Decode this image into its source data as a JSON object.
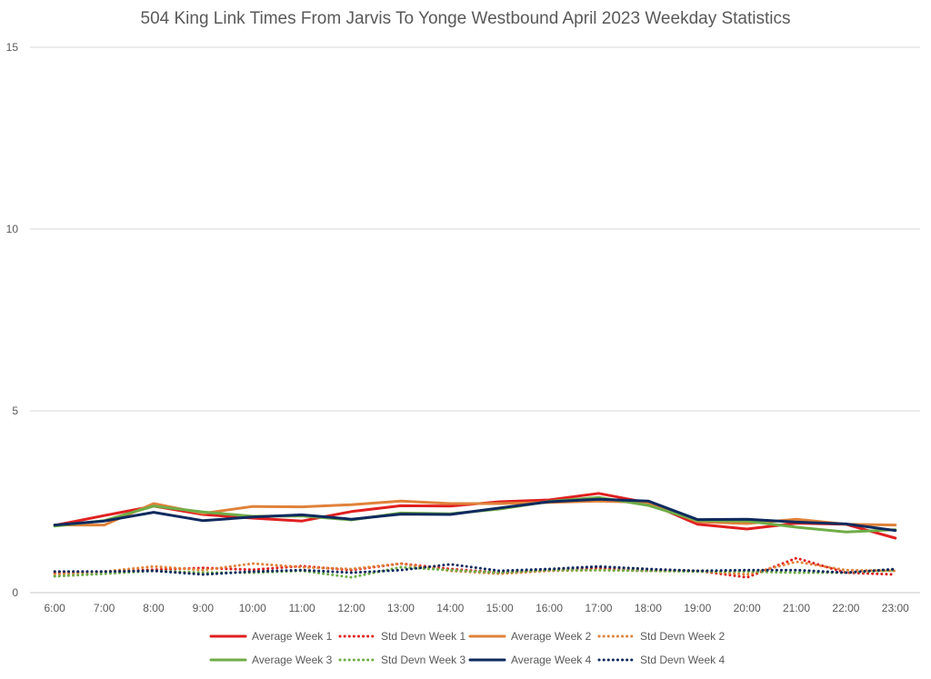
{
  "chart_data": {
    "type": "line",
    "title": "504 King Link Times From Jarvis To Yonge Westbound April 2023 Weekday Statistics",
    "xlabel": "",
    "ylabel": "",
    "ylim": [
      0,
      15
    ],
    "yticks": [
      "0",
      "5",
      "10",
      "15"
    ],
    "grid": "horizontal",
    "legend_placement": "bottom",
    "categories": [
      "6:00",
      "7:00",
      "8:00",
      "9:00",
      "10:00",
      "11:00",
      "12:00",
      "13:00",
      "14:00",
      "15:00",
      "16:00",
      "17:00",
      "18:00",
      "19:00",
      "20:00",
      "21:00",
      "22:00",
      "23:00"
    ],
    "series": [
      {
        "name": "Average Week 1",
        "color": "#e02020",
        "style": "solid",
        "values": [
          1.85,
          2.12,
          2.38,
          2.15,
          2.05,
          1.97,
          2.23,
          2.39,
          2.38,
          2.5,
          2.55,
          2.73,
          2.47,
          1.88,
          1.75,
          1.91,
          1.88,
          1.5
        ]
      },
      {
        "name": "Std Devn Week 1",
        "color": "#e02020",
        "style": "dotted",
        "values": [
          0.55,
          0.57,
          0.63,
          0.68,
          0.63,
          0.73,
          0.62,
          0.8,
          0.65,
          0.55,
          0.62,
          0.68,
          0.6,
          0.6,
          0.42,
          0.95,
          0.55,
          0.5
        ]
      },
      {
        "name": "Average Week 2",
        "color": "#e0823a",
        "style": "solid",
        "values": [
          1.86,
          1.86,
          2.45,
          2.18,
          2.37,
          2.36,
          2.42,
          2.52,
          2.45,
          2.45,
          2.48,
          2.52,
          2.48,
          1.95,
          1.9,
          2.02,
          1.88,
          1.86
        ]
      },
      {
        "name": "Std Devn Week 2",
        "color": "#e0823a",
        "style": "dotted",
        "values": [
          0.5,
          0.58,
          0.72,
          0.62,
          0.8,
          0.7,
          0.65,
          0.8,
          0.6,
          0.52,
          0.6,
          0.62,
          0.6,
          0.6,
          0.5,
          0.85,
          0.62,
          0.6
        ]
      },
      {
        "name": "Average Week 3",
        "color": "#70ad47",
        "style": "solid",
        "values": [
          1.83,
          1.98,
          2.38,
          2.22,
          2.1,
          2.11,
          2.0,
          2.19,
          2.17,
          2.3,
          2.51,
          2.62,
          2.4,
          1.98,
          1.97,
          1.8,
          1.67,
          1.73
        ]
      },
      {
        "name": "Std Devn Week 3",
        "color": "#70ad47",
        "style": "dotted",
        "values": [
          0.45,
          0.52,
          0.6,
          0.55,
          0.55,
          0.6,
          0.42,
          0.7,
          0.62,
          0.55,
          0.62,
          0.62,
          0.6,
          0.58,
          0.58,
          0.55,
          0.55,
          0.62
        ]
      },
      {
        "name": "Average Week 4",
        "color": "#0f2a5e",
        "style": "solid",
        "values": [
          1.86,
          1.97,
          2.21,
          1.98,
          2.08,
          2.14,
          2.02,
          2.16,
          2.15,
          2.33,
          2.5,
          2.57,
          2.52,
          2.01,
          2.02,
          1.94,
          1.89,
          1.71
        ]
      },
      {
        "name": "Std Devn Week 4",
        "color": "#0f2a5e",
        "style": "dotted",
        "values": [
          0.58,
          0.58,
          0.6,
          0.5,
          0.58,
          0.62,
          0.55,
          0.62,
          0.78,
          0.6,
          0.65,
          0.72,
          0.65,
          0.6,
          0.62,
          0.62,
          0.55,
          0.65
        ]
      }
    ]
  }
}
